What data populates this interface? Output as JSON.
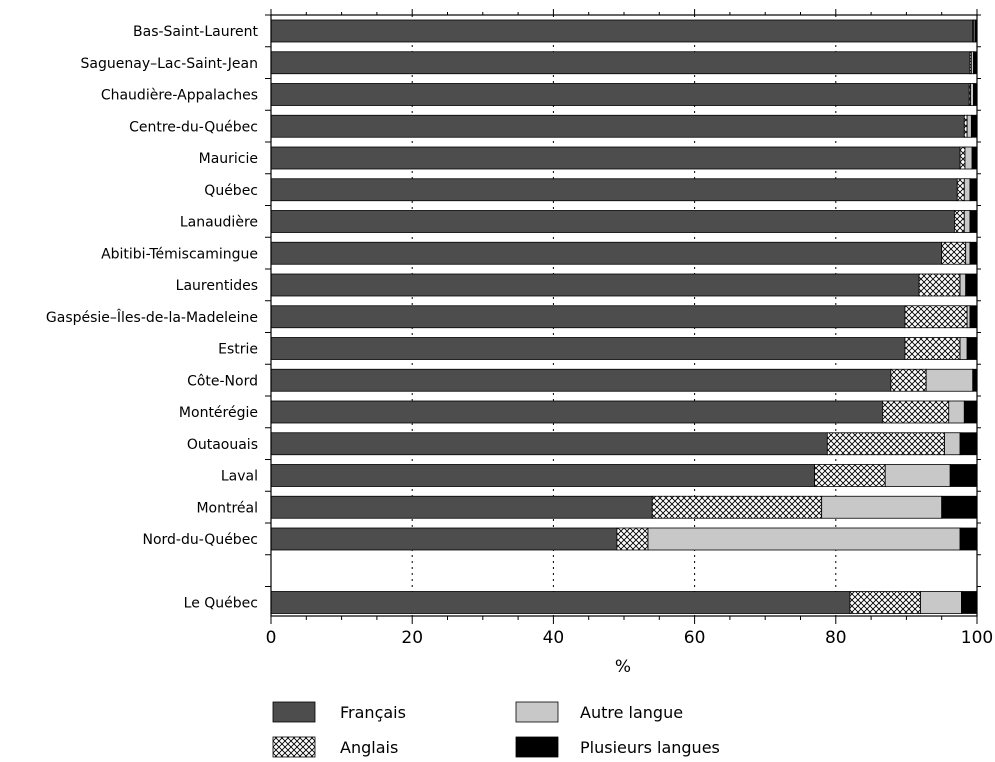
{
  "chart_data": {
    "type": "bar",
    "orientation": "horizontal",
    "stacked": true,
    "title": "",
    "xlabel": "%",
    "ylabel": "",
    "xlim": [
      0,
      100
    ],
    "xticks": [
      0,
      20,
      40,
      60,
      80,
      100
    ],
    "grid": "vertical dotted",
    "legend_position": "bottom",
    "categories": [
      "Bas-Saint-Laurent",
      "Saguenay–Lac-Saint-Jean",
      "Chaudière-Appalaches",
      "Centre-du-Québec",
      "Mauricie",
      "Québec",
      "Lanaudière",
      "Abitibi-Témiscamingue",
      "Laurentides",
      "Gaspésie–Îles-de-la-Madeleine",
      "Estrie",
      "Côte-Nord",
      "Montérégie",
      "Outaouais",
      "Laval",
      "Montréal",
      "Nord-du-Québec",
      "Le Québec"
    ],
    "series": [
      {
        "name": "Français",
        "color": "#4d4d4d",
        "pattern": "solid",
        "values": [
          99.4,
          99.0,
          98.9,
          98.2,
          97.6,
          97.2,
          96.8,
          95.0,
          91.8,
          89.8,
          89.8,
          87.8,
          86.6,
          78.8,
          77.0,
          54.0,
          49.0,
          82.0
        ]
      },
      {
        "name": "Anglais",
        "color": "#ffffff",
        "pattern": "crosshatch",
        "values": [
          0.1,
          0.2,
          0.2,
          0.4,
          0.7,
          1.0,
          1.4,
          3.4,
          5.8,
          8.8,
          7.8,
          5.0,
          9.4,
          16.6,
          10.0,
          24.0,
          4.4,
          10.0
        ]
      },
      {
        "name": "Autre langue",
        "color": "#c8c8c8",
        "pattern": "solid",
        "values": [
          0.2,
          0.3,
          0.4,
          0.6,
          1.0,
          0.8,
          0.8,
          0.6,
          0.8,
          0.4,
          1.0,
          6.6,
          2.2,
          2.2,
          9.2,
          17.0,
          44.2,
          5.8
        ]
      },
      {
        "name": "Plusieurs langues",
        "color": "#000000",
        "pattern": "solid",
        "values": [
          0.3,
          0.5,
          0.5,
          0.8,
          0.7,
          1.0,
          1.0,
          1.0,
          1.6,
          1.0,
          1.4,
          0.6,
          1.8,
          2.4,
          3.8,
          5.0,
          2.4,
          2.2
        ]
      }
    ]
  }
}
